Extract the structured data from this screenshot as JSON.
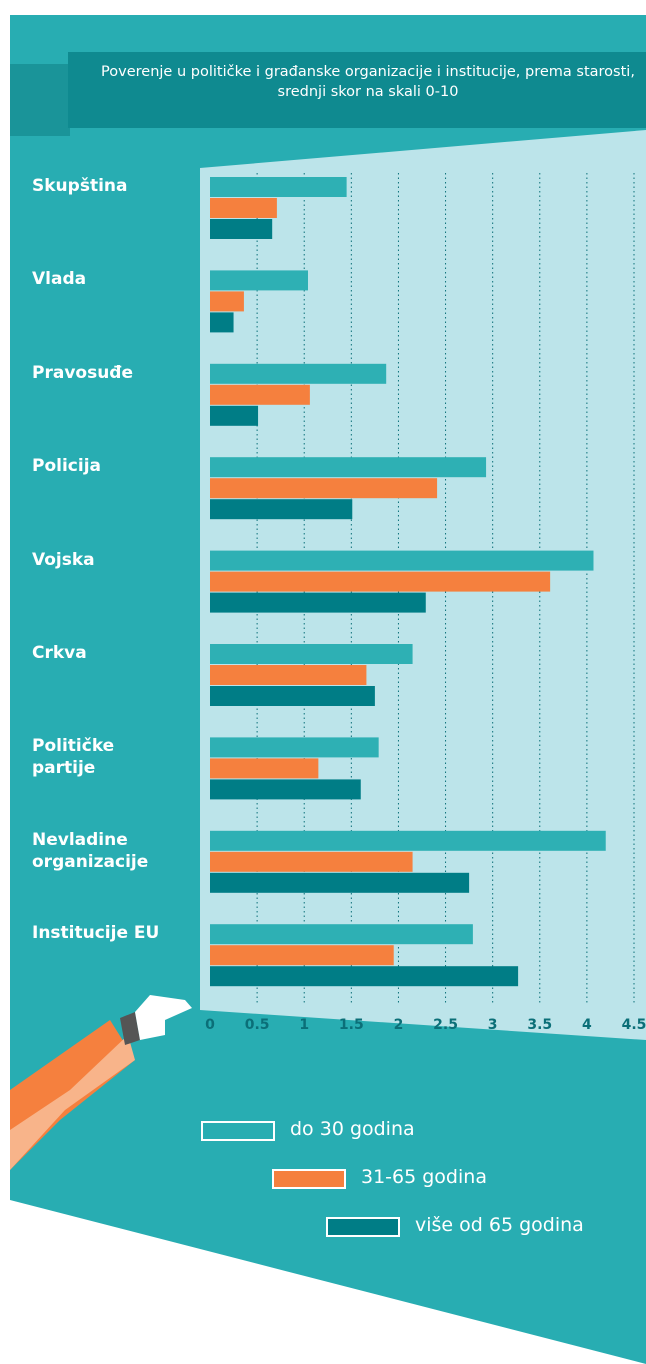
{
  "chart_data": {
    "type": "hbar",
    "title": "Poverenje u političke i građanske organizacije i institucije, prema starosti, srednji skor na skali 0-10",
    "categories": [
      "Skupština",
      "Vlada",
      "Pravosuđe",
      "Policija",
      "Vojska",
      "Crkva",
      "Političke partije",
      "Nevladine organizacije",
      "Institucije EU"
    ],
    "series": [
      {
        "name": "do 30 godina",
        "color": "#2eb0b4",
        "values": [
          1.45,
          1.04,
          1.87,
          2.93,
          4.07,
          2.15,
          1.79,
          4.2,
          2.79
        ]
      },
      {
        "name": "31-65 godina",
        "color": "#f5803e",
        "values": [
          0.71,
          0.36,
          1.06,
          2.41,
          3.61,
          1.66,
          1.15,
          2.15,
          1.95
        ]
      },
      {
        "name": "više od 65 godina",
        "color": "#007d86",
        "values": [
          0.66,
          0.25,
          0.51,
          1.51,
          2.29,
          1.75,
          1.6,
          2.75,
          3.27
        ]
      }
    ],
    "xlim": [
      0,
      4.5
    ],
    "xticks": [
      0,
      0.5,
      1,
      1.5,
      2,
      2.5,
      3,
      3.5,
      4,
      4.5
    ],
    "grid": true
  }
}
